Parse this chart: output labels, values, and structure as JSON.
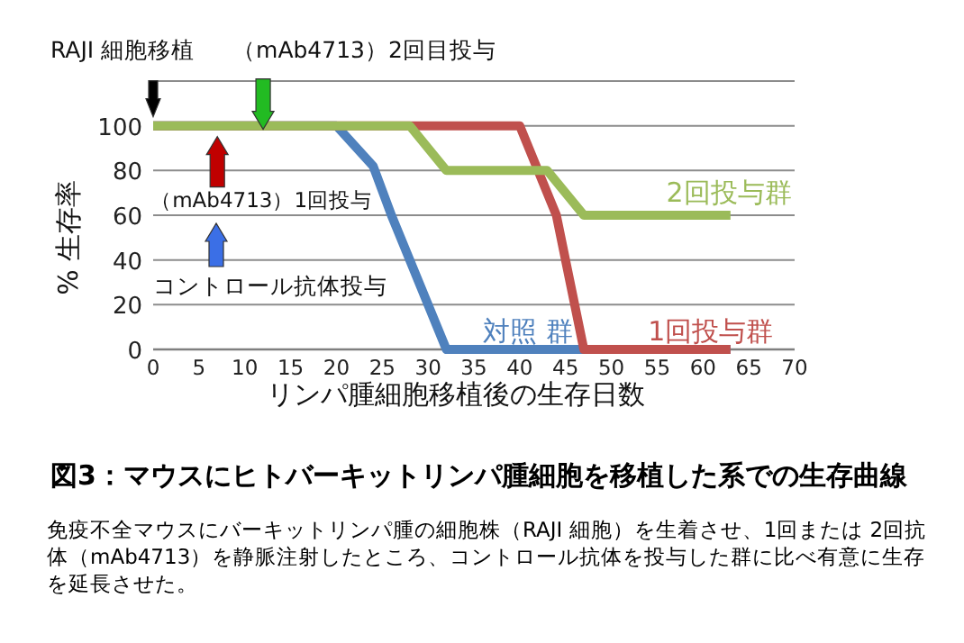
{
  "chart_data": {
    "type": "line",
    "title": "図3：マウスにヒトバーキットリンパ腫細胞を移植した系での生存曲線",
    "xlabel": "リンパ腫細胞移植後の生存日数",
    "ylabel": "% 生存率",
    "xlim": [
      0,
      70
    ],
    "ylim": [
      0,
      120
    ],
    "xticks": [
      0,
      5,
      10,
      15,
      20,
      25,
      30,
      35,
      40,
      45,
      50,
      55,
      60,
      65,
      70
    ],
    "yticks": [
      0,
      20,
      40,
      60,
      80,
      100,
      {
        "value": 120,
        "label": null
      }
    ],
    "grid": "y",
    "series": [
      {
        "name": "対照 群",
        "color": "#4f81bd",
        "x": [
          0,
          20,
          24,
          26,
          32,
          63
        ],
        "values": [
          100,
          100,
          82,
          60,
          0,
          0
        ]
      },
      {
        "name": "1回投与群",
        "color": "#c0504d",
        "x": [
          0,
          40,
          42,
          44,
          45,
          47,
          63
        ],
        "values": [
          100,
          100,
          80,
          60,
          40,
          0,
          0
        ]
      },
      {
        "name": "2回投与群",
        "color": "#9bbb59",
        "x": [
          0,
          28,
          32,
          43,
          47,
          63
        ],
        "values": [
          100,
          100,
          80,
          80,
          60,
          60
        ]
      }
    ],
    "annotations": [
      {
        "text": "RAJI 細胞移植",
        "x": 0,
        "y": 100
      },
      {
        "text": "（mAb4713）2回目投与",
        "x": 12,
        "y": 100
      },
      {
        "text": "（mAb4713）1回投与",
        "x": 7,
        "y": 100
      },
      "コントロール抗体投与",
      "免疫不全マウスにバーキットリンパ腫の細胞株（RAJI 細胞）を生着させ、1回または 2回抗体（mAb4713）を静脈注射したところ、コントロール抗体を投与した群に比べ有意に生存を延長させた。"
    ]
  }
}
